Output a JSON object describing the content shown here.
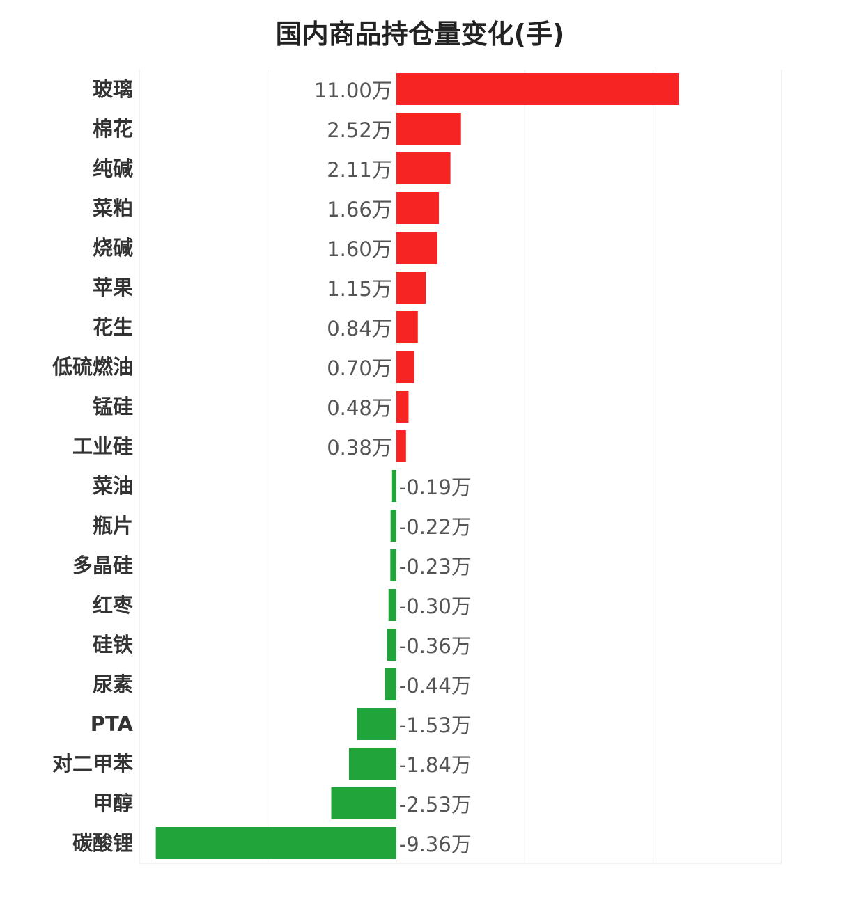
{
  "chart_data": {
    "type": "bar",
    "orientation": "horizontal",
    "title": "国内商品持仓量变化(手)",
    "unit_suffix": "万",
    "xlim": [
      -10,
      15
    ],
    "grid": true,
    "legend": "none",
    "colors": {
      "positive": "#f72424",
      "negative": "#21a43a",
      "grid": "#e6e6e6"
    },
    "categories": [
      "玻璃",
      "棉花",
      "纯碱",
      "菜粕",
      "烧碱",
      "苹果",
      "花生",
      "低硫燃油",
      "锰硅",
      "工业硅",
      "菜油",
      "瓶片",
      "多晶硅",
      "红枣",
      "硅铁",
      "尿素",
      "PTA",
      "对二甲苯",
      "甲醇",
      "碳酸锂"
    ],
    "values": [
      11.0,
      2.52,
      2.11,
      1.66,
      1.6,
      1.15,
      0.84,
      0.7,
      0.48,
      0.38,
      -0.19,
      -0.22,
      -0.23,
      -0.3,
      -0.36,
      -0.44,
      -1.53,
      -1.84,
      -2.53,
      -9.36
    ],
    "value_labels": [
      "11.00万",
      "2.52万",
      "2.11万",
      "1.66万",
      "1.60万",
      "1.15万",
      "0.84万",
      "0.70万",
      "0.48万",
      "0.38万",
      "-0.19万",
      "-0.22万",
      "-0.23万",
      "-0.30万",
      "-0.36万",
      "-0.44万",
      "-1.53万",
      "-1.84万",
      "-2.53万",
      "-9.36万"
    ]
  }
}
